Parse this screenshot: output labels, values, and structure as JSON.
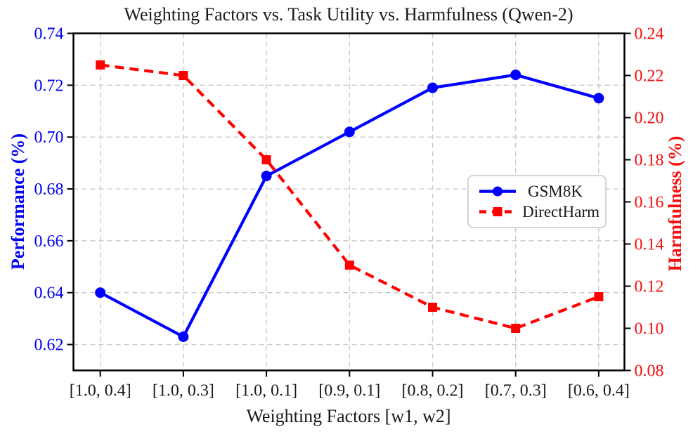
{
  "chart_data": {
    "type": "line",
    "title": "Weighting Factors vs. Task Utility vs. Harmfulness (Qwen-2)",
    "xlabel": "Weighting Factors [w1, w2]",
    "ylabel_left": "Performance (%)",
    "ylabel_right": "Harmfulness (%)",
    "categories": [
      "[1.0, 0.4]",
      "[1.0, 0.3]",
      "[1.0, 0.1]",
      "[0.9, 0.1]",
      "[0.8, 0.2]",
      "[0.7, 0.3]",
      "[0.6, 0.4]"
    ],
    "series": [
      {
        "name": "GSM8K",
        "axis": "left",
        "color": "#0000ff",
        "linestyle": "solid",
        "marker": "circle",
        "values": [
          0.64,
          0.623,
          0.685,
          0.702,
          0.719,
          0.724,
          0.715
        ]
      },
      {
        "name": "DirectHarm",
        "axis": "right",
        "color": "#ff0000",
        "linestyle": "dashed",
        "marker": "square",
        "values": [
          0.225,
          0.22,
          0.18,
          0.13,
          0.11,
          0.1,
          0.115
        ]
      }
    ],
    "axes": {
      "left": {
        "ticks": [
          0.62,
          0.64,
          0.66,
          0.68,
          0.7,
          0.72,
          0.74
        ],
        "lim": [
          0.61,
          0.74
        ],
        "color": "#0202ee"
      },
      "right": {
        "ticks": [
          0.08,
          0.1,
          0.12,
          0.14,
          0.16,
          0.18,
          0.2,
          0.22,
          0.24
        ],
        "lim": [
          0.08,
          0.24
        ],
        "color": "#f50f0f"
      }
    },
    "grid": true,
    "legend_position": "center right"
  }
}
